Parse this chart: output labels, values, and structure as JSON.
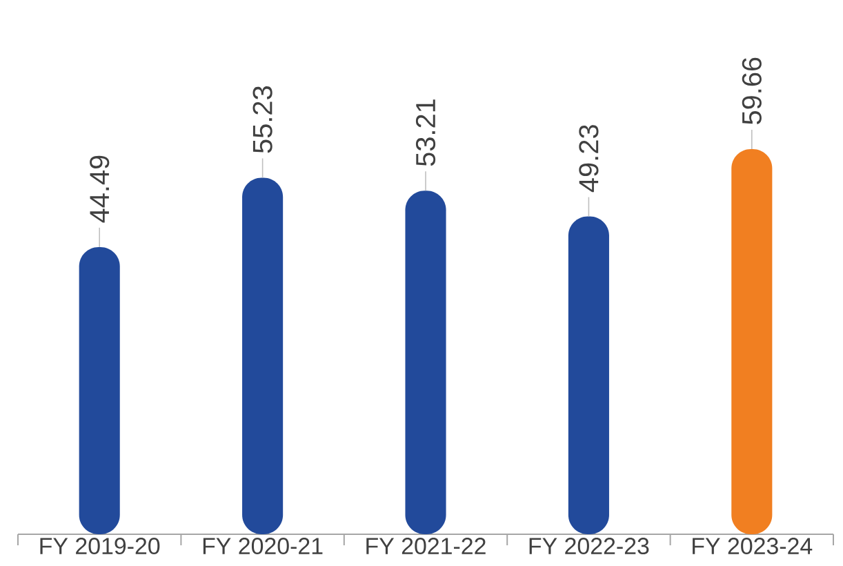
{
  "chart_data": {
    "type": "bar",
    "categories": [
      "FY 2019-20",
      "FY 2020-21",
      "FY 2021-22",
      "FY 2022-23",
      "FY 2023-24"
    ],
    "values": [
      44.49,
      55.23,
      53.21,
      49.23,
      59.66
    ],
    "colors": [
      "#224a9b",
      "#224a9b",
      "#224a9b",
      "#224a9b",
      "#f17f21"
    ],
    "tick_labels": "x",
    "data_labels": true
  }
}
